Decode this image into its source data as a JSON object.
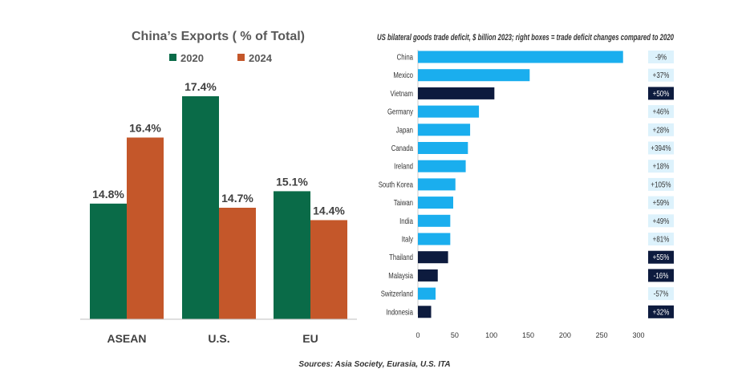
{
  "source_note": "Sources: Asia Society, Eurasia, U.S. ITA",
  "chart_data": [
    {
      "type": "bar",
      "title": "China’s Exports ( % of Total)",
      "categories": [
        "ASEAN",
        "U.S.",
        "EU"
      ],
      "series": [
        {
          "name": "2020",
          "values": [
            14.8,
            17.4,
            15.1
          ],
          "labels": [
            "14.8%",
            "17.4%",
            "15.1%"
          ],
          "color": "#0a6b48"
        },
        {
          "name": "2024",
          "values": [
            16.4,
            14.7,
            14.4
          ],
          "labels": [
            "16.4%",
            "14.7%",
            "14.4%"
          ],
          "color": "#c4572a"
        }
      ],
      "ylim": [
        12.0,
        18.6
      ],
      "grid": false,
      "legend": "top"
    },
    {
      "type": "bar",
      "orientation": "horizontal",
      "title": "US bilateral goods trade deficit, $ billion 2023; right boxes = trade deficit changes compared to 2020",
      "categories": [
        "China",
        "Mexico",
        "Vietnam",
        "Germany",
        "Japan",
        "Canada",
        "Ireland",
        "South Korea",
        "Taiwan",
        "India",
        "Italy",
        "Thailand",
        "Malaysia",
        "Switzerland",
        "Indonesia"
      ],
      "values": [
        279,
        152,
        104,
        83,
        71,
        68,
        65,
        51,
        48,
        44,
        44,
        41,
        27,
        24,
        18
      ],
      "highlighted": [
        "Vietnam",
        "Thailand",
        "Malaysia",
        "Indonesia"
      ],
      "changes": [
        "-9%",
        "+37%",
        "+50%",
        "+46%",
        "+28%",
        "+394%",
        "+18%",
        "+105%",
        "+59%",
        "+49%",
        "+81%",
        "+55%",
        "-16%",
        "-57%",
        "+32%"
      ],
      "xlim": [
        0,
        300
      ],
      "xticks": [
        "0",
        "50",
        "100",
        "150",
        "200",
        "250",
        "300"
      ],
      "colors": {
        "bar": "#1aaeee",
        "highlight": "#0d1b3e",
        "box": "#ddf2fc",
        "box_text_dark": "#333333",
        "box_text_light": "#ffffff"
      },
      "grid": false
    }
  ]
}
